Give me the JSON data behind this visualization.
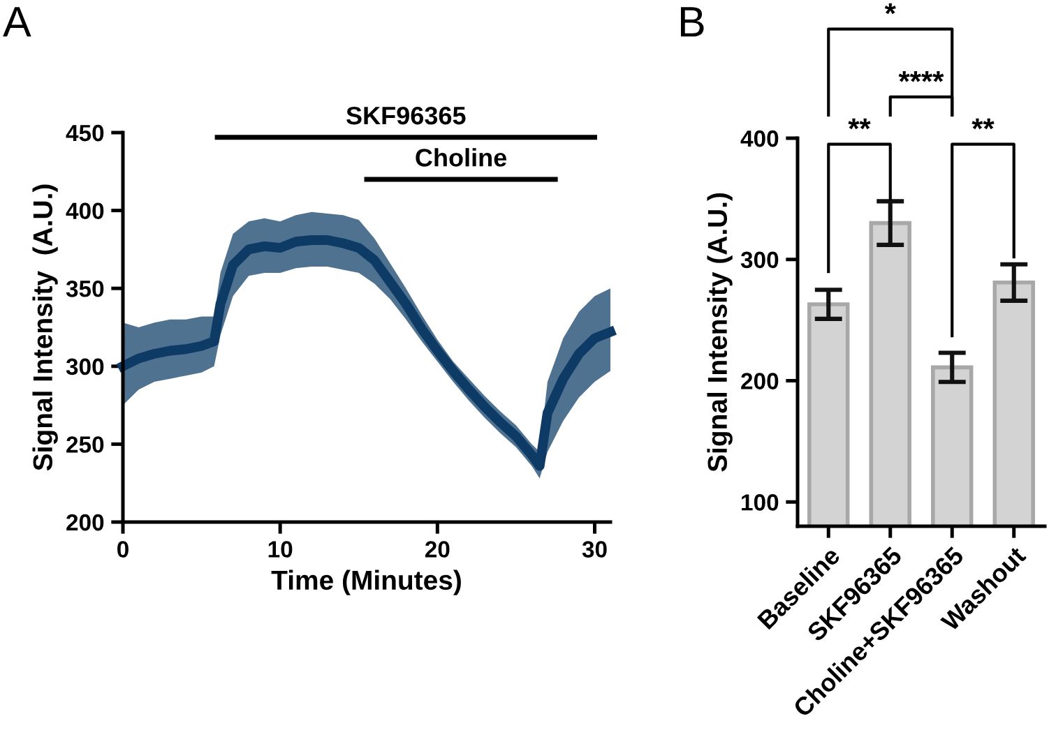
{
  "chart_data": [
    {
      "type": "line",
      "xlabel": "Time (Minutes)",
      "ylabel": "Signal Intensity  (A.U.)",
      "annotations": [
        "A"
      ],
      "x": [
        0,
        1,
        2,
        3,
        4,
        5,
        5.8,
        6.2,
        7,
        8,
        9,
        10,
        11,
        12,
        13,
        14,
        15,
        16,
        17,
        18,
        19,
        20,
        21,
        22,
        23,
        24,
        25,
        26,
        26.5,
        27,
        28,
        29,
        30,
        31
      ],
      "series": [
        {
          "color": "#0d3b66",
          "values": [
            300,
            305,
            308,
            310,
            311,
            313,
            316,
            340,
            365,
            375,
            377,
            376,
            380,
            381,
            381,
            379,
            376,
            368,
            354,
            340,
            324,
            310,
            297,
            285,
            274,
            264,
            255,
            243,
            236,
            270,
            292,
            308,
            318,
            322
          ],
          "lower": [
            275,
            285,
            290,
            292,
            294,
            296,
            300,
            320,
            345,
            358,
            360,
            360,
            363,
            364,
            364,
            362,
            360,
            353,
            343,
            330,
            316,
            303,
            290,
            278,
            267,
            257,
            248,
            236,
            228,
            245,
            265,
            280,
            290,
            297
          ],
          "upper": [
            328,
            325,
            328,
            330,
            330,
            332,
            332,
            360,
            385,
            393,
            395,
            393,
            397,
            399,
            398,
            397,
            394,
            382,
            366,
            350,
            333,
            317,
            303,
            292,
            281,
            271,
            262,
            250,
            245,
            290,
            318,
            335,
            345,
            350
          ]
        },
        {
          "type": "line",
          "name": "SKF96365",
          "color": "#000000",
          "x": [
            6,
            30
          ],
          "values": [
            447,
            447
          ]
        },
        {
          "type": "line",
          "name": "Choline",
          "color": "#000000",
          "x": [
            15.5,
            27.5
          ],
          "values": [
            420,
            420
          ]
        }
      ],
      "xlim": [
        0,
        31
      ],
      "xticks": [
        0,
        10,
        20,
        30
      ],
      "ylim": [
        200,
        450
      ],
      "yticks": [
        200,
        250,
        300,
        350,
        400,
        450
      ],
      "grid": false,
      "legend": false,
      "marker": "none",
      "line_style": "solid"
    },
    {
      "type": "bar",
      "ylabel": "Signal Intensity (A.U.)",
      "annotations": [
        "B",
        "*",
        "****",
        "**",
        "**"
      ],
      "categories": [
        "Baseline",
        "SKF96365",
        "Choline+SKF96365",
        "Washout"
      ],
      "values": [
        263,
        330,
        211,
        281
      ],
      "errors": [
        12,
        18,
        12,
        15
      ],
      "color": "#d3d3d3",
      "ylim": [
        80,
        400
      ],
      "yticks": [
        100,
        200,
        300,
        400
      ],
      "grid": false,
      "legend": false
    }
  ]
}
